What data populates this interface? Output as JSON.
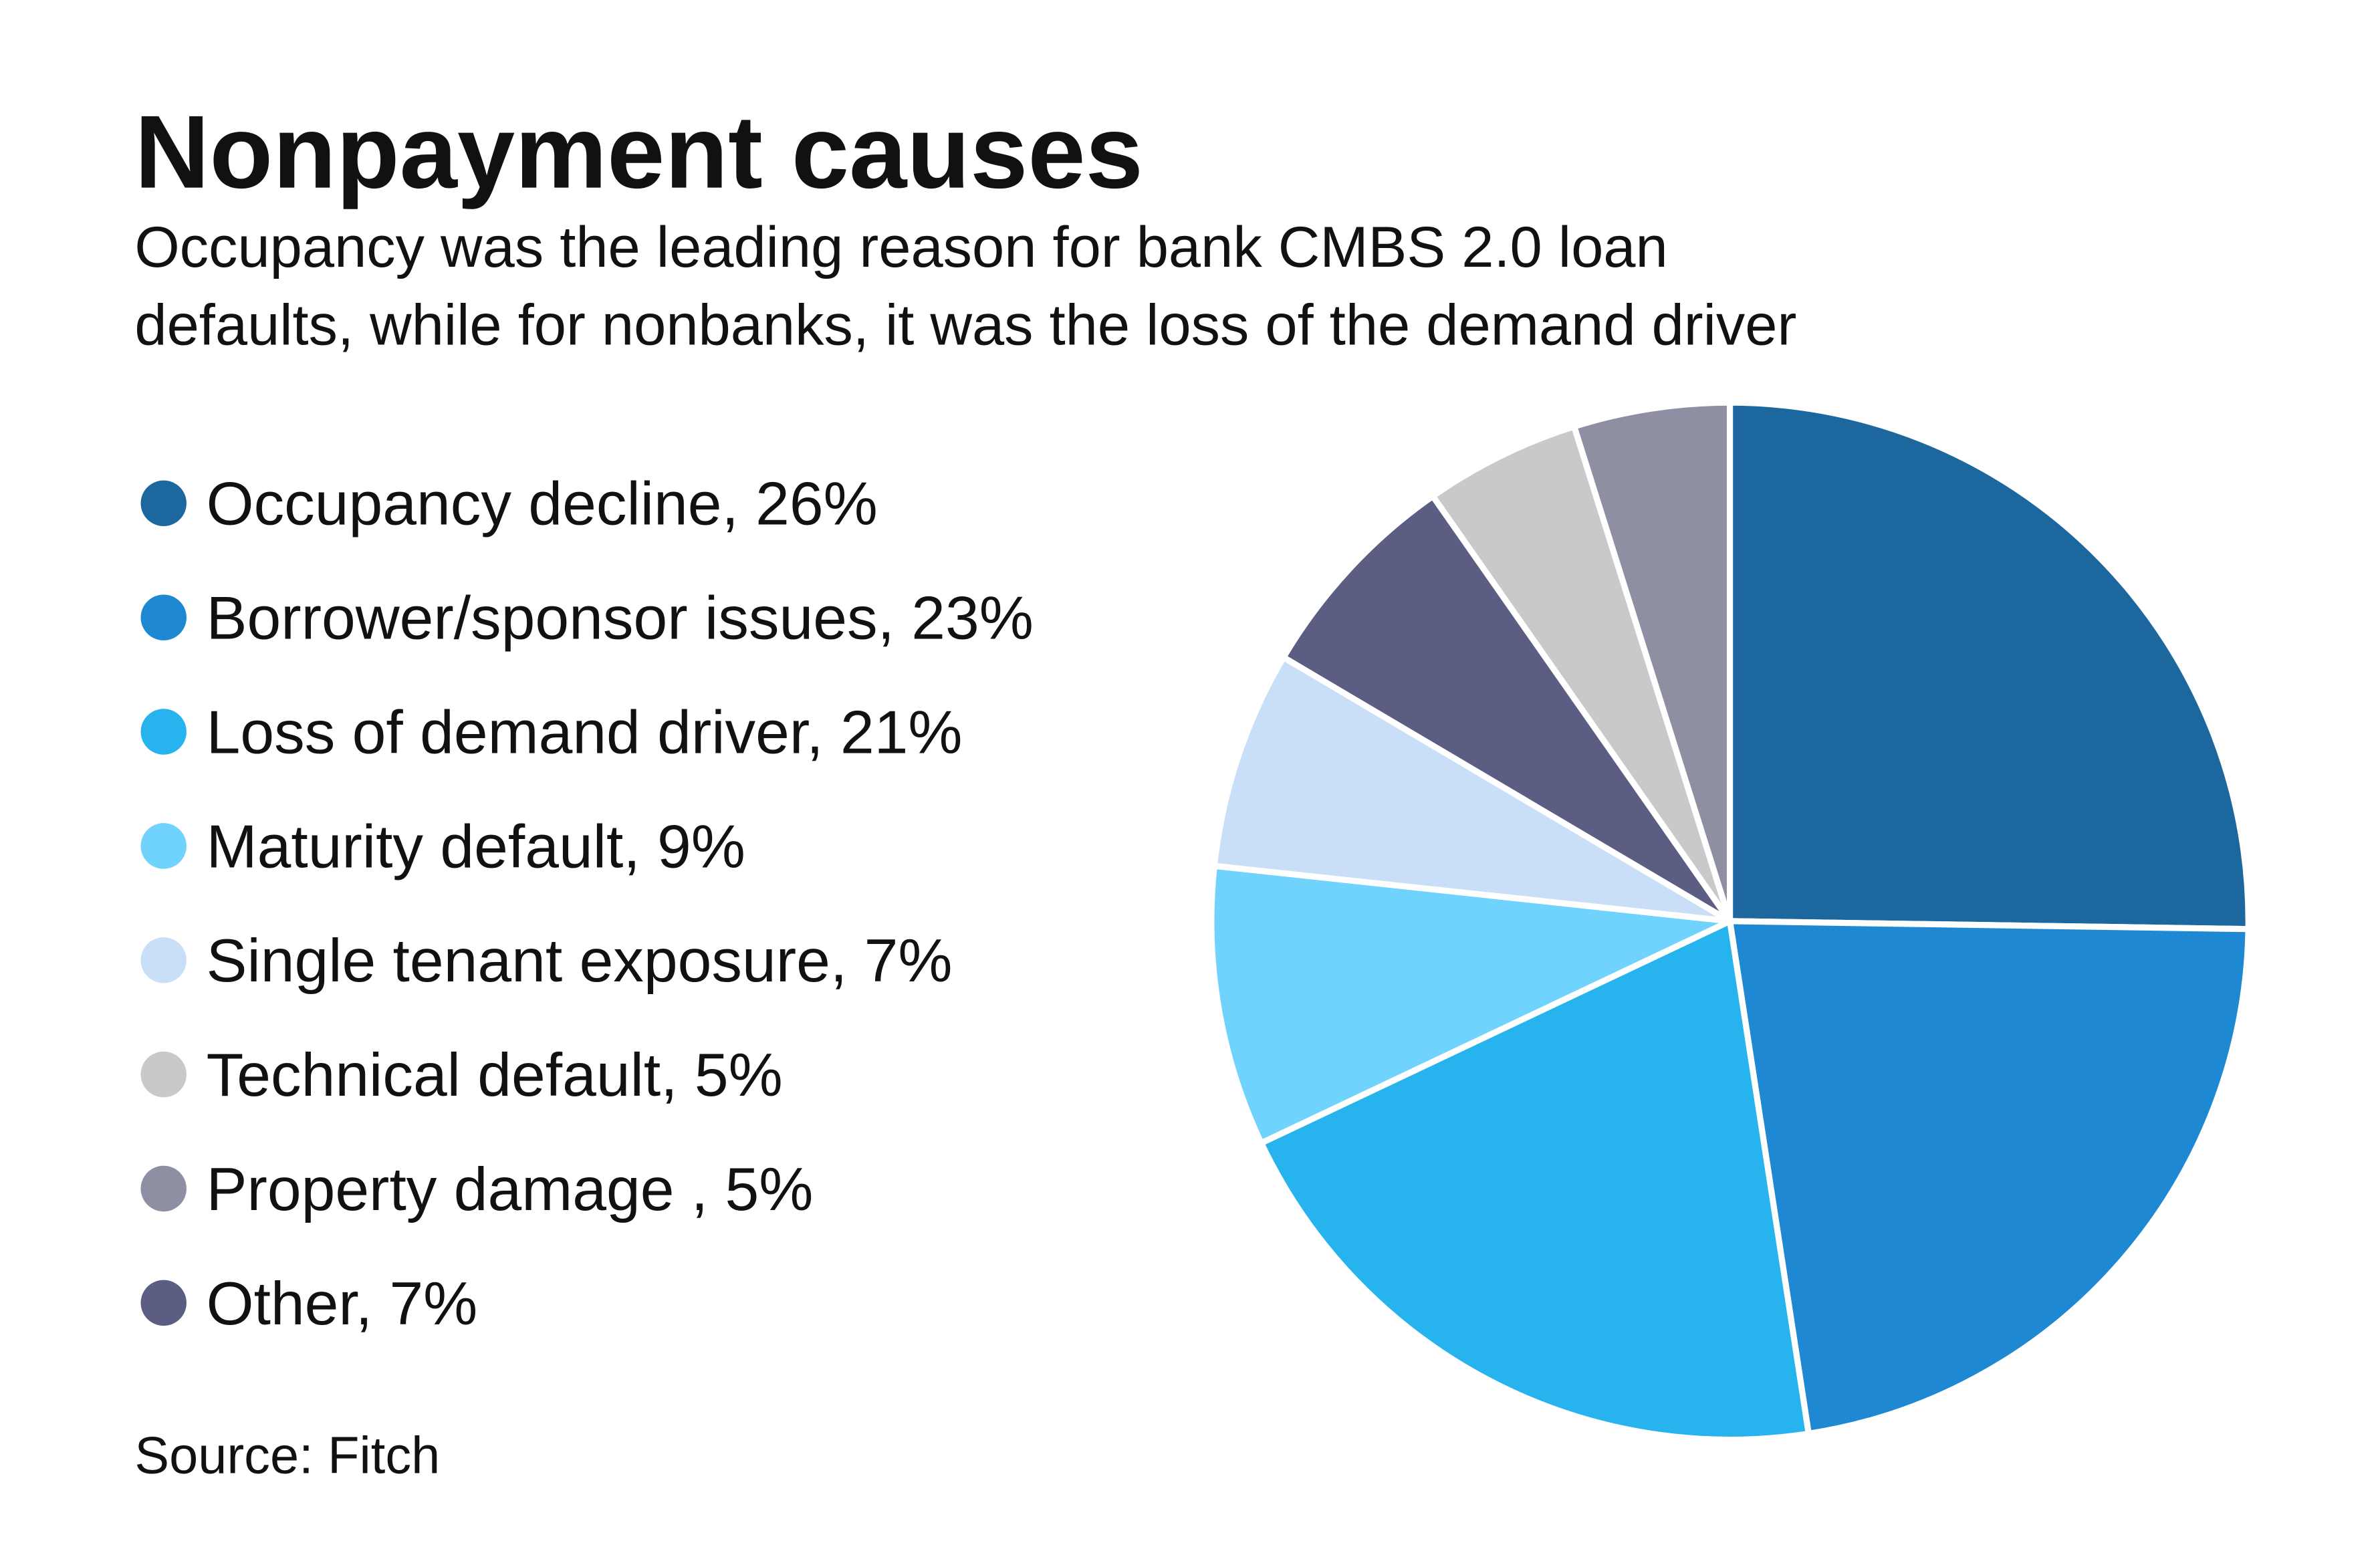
{
  "chart_data": {
    "type": "pie",
    "title": "Nonpayment causes",
    "subtitle": [
      "Occupancy was the leading reason for bank CMBS 2.0 loan",
      "defaults, while for nonbanks, it was the loss of the demand driver"
    ],
    "source": "Source: Fitch",
    "categories": [
      "Occupancy decline, 26%",
      "Borrower/sponsor issues, 23%",
      "Loss of demand driver, 21%",
      "Maturity default, 9%",
      "Single tenant exposure, 7%",
      "Technical default, 5%",
      "Property damage , 5%",
      "Other, 7%"
    ],
    "values": [
      26,
      23,
      21,
      9,
      7,
      5,
      5,
      7
    ],
    "colors": [
      "#1c689e",
      "#1e88d3",
      "#27b3ee",
      "#6fd3fd",
      "#c9dff7",
      "#c9c9cc",
      "#8e8fa3",
      "#5b5e82"
    ]
  }
}
